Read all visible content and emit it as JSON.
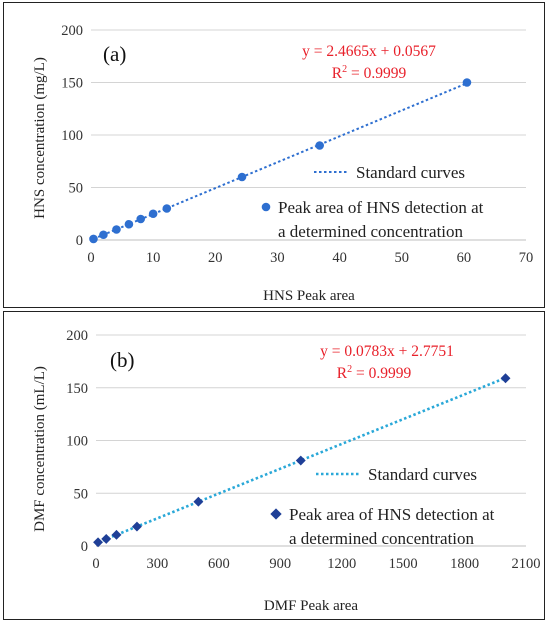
{
  "chart_data": [
    {
      "type": "scatter",
      "panel_label": "(a)",
      "xlabel": "HNS Peak area",
      "ylabel": "HNS concentration (mg/L)",
      "xlim": [
        0,
        70
      ],
      "ylim": [
        0,
        200
      ],
      "x_ticks": [
        0,
        10,
        20,
        30,
        40,
        50,
        60,
        70
      ],
      "y_ticks": [
        0,
        50,
        100,
        150,
        200
      ],
      "grid": "horizontal",
      "equation": "y = 2.4665x + 0.0567",
      "r2_prefix": "R",
      "r2_suffix": " = 0.9999",
      "marker": "circle",
      "point_color": "#2e6fd0",
      "trend_color": "#2e6fd0",
      "series": [
        {
          "name": "Peak area of HNS detection at a determined concentration",
          "x": [
            0.4,
            2.0,
            4.1,
            6.1,
            8.0,
            10.0,
            12.2,
            24.3,
            36.8,
            60.5
          ],
          "y": [
            1,
            5,
            10,
            15,
            20,
            25,
            30,
            60,
            90,
            150
          ]
        }
      ],
      "trendline": {
        "name": "Standard curves",
        "slope": 2.4665,
        "intercept": 0.0567
      },
      "legend": {
        "line_label": "Standard curves",
        "marker_label_line1": "Peak area of HNS detection at",
        "marker_label_line2": "a determined concentration"
      }
    },
    {
      "type": "scatter",
      "panel_label": "(b)",
      "xlabel": "DMF Peak area",
      "ylabel": "DMF concentration (mL/L)",
      "xlim": [
        0,
        2100
      ],
      "ylim": [
        0,
        200
      ],
      "x_ticks": [
        0,
        300,
        600,
        900,
        1200,
        1500,
        1800,
        2100
      ],
      "y_ticks": [
        0,
        50,
        100,
        150,
        200
      ],
      "grid": "horizontal",
      "equation": "y = 0.0783x + 2.7751",
      "r2_prefix": "R",
      "r2_suffix": " = 0.9999",
      "marker": "diamond",
      "point_color": "#1f3f97",
      "trend_color": "#2aa8d8",
      "series": [
        {
          "name": "Peak area of HNS detection at a determined concentration",
          "x": [
            10,
            50,
            100,
            200,
            500,
            1000,
            2000
          ],
          "y": [
            3.5,
            6.7,
            10.6,
            18.4,
            42,
            81,
            159
          ]
        }
      ],
      "trendline": {
        "name": "Standard curves",
        "slope": 0.0783,
        "intercept": 2.7751
      },
      "legend": {
        "line_label": "Standard curves",
        "marker_label_line1": "Peak area of HNS detection at",
        "marker_label_line2": "a determined concentration"
      }
    }
  ]
}
